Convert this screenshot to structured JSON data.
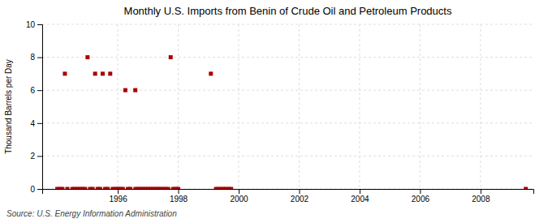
{
  "chart_data": {
    "type": "scatter",
    "title": "Monthly U.S. Imports from Benin of Crude Oil and Petroleum Products",
    "ylabel": "Thousand Barrels per Day",
    "annotations": [
      "Source: U.S. Energy Information Administration"
    ],
    "color": "#aa0000",
    "marker": "square",
    "grid": true,
    "xlim": [
      1993.5,
      2009.75
    ],
    "ylim": [
      0,
      10
    ],
    "xticks": [
      1996,
      1998,
      2000,
      2002,
      2004,
      2006,
      2008
    ],
    "yticks": [
      0,
      2,
      4,
      6,
      8,
      10
    ],
    "x": [
      1994.25,
      1995.0,
      1995.25,
      1995.5,
      1995.75,
      1996.25,
      1996.58,
      1997.75,
      1999.08,
      1994.0,
      1994.083,
      1994.167,
      1994.333,
      1994.5,
      1994.583,
      1994.667,
      1994.75,
      1994.833,
      1994.917,
      1995.083,
      1995.167,
      1995.333,
      1995.417,
      1995.583,
      1995.667,
      1995.833,
      1995.917,
      1996.0,
      1996.083,
      1996.167,
      1996.333,
      1996.417,
      1996.583,
      1996.667,
      1996.75,
      1996.833,
      1996.917,
      1997.0,
      1997.083,
      1997.167,
      1997.25,
      1997.333,
      1997.417,
      1997.5,
      1997.583,
      1997.667,
      1997.833,
      1997.917,
      1998.0,
      1999.25,
      1999.333,
      1999.417,
      1999.5,
      1999.583,
      1999.667,
      1999.75,
      2009.5
    ],
    "values": [
      7,
      8,
      7,
      7,
      7,
      6,
      6,
      8,
      7,
      0,
      0,
      0,
      0,
      0,
      0,
      0,
      0,
      0,
      0,
      0,
      0,
      0,
      0,
      0,
      0,
      0,
      0,
      0,
      0,
      0,
      0,
      0,
      0,
      0,
      0,
      0,
      0,
      0,
      0,
      0,
      0,
      0,
      0,
      0,
      0,
      0,
      0,
      0,
      0,
      0,
      0,
      0,
      0,
      0,
      0,
      0,
      0
    ]
  }
}
